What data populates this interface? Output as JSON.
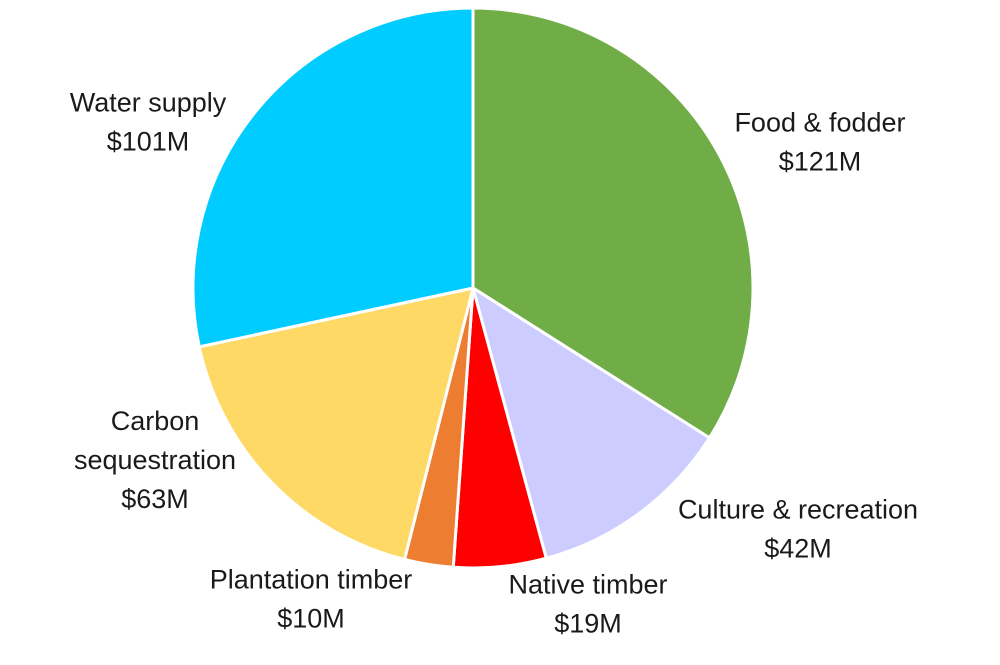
{
  "chart_data": {
    "type": "pie",
    "start_angle_deg": 0,
    "direction": "clockwise",
    "slices": [
      {
        "name": "Food & fodder",
        "label_lines": [
          "Food & fodder",
          "$121M"
        ],
        "value": 121,
        "color": "#70AD47"
      },
      {
        "name": "Culture & recreation",
        "label_lines": [
          "Culture & recreation",
          "$42M"
        ],
        "value": 42,
        "color": "#CCCCFF"
      },
      {
        "name": "Native timber",
        "label_lines": [
          "Native timber",
          "$19M"
        ],
        "value": 19,
        "color": "#FF0000"
      },
      {
        "name": "Plantation timber",
        "label_lines": [
          "Plantation timber",
          "$10M"
        ],
        "value": 10,
        "color": "#ED7D31"
      },
      {
        "name": "Carbon sequestration",
        "label_lines": [
          "Carbon",
          "sequestration",
          "$63M"
        ],
        "value": 63,
        "color": "#FFD966"
      },
      {
        "name": "Water supply",
        "label_lines": [
          "Water supply",
          "$101M"
        ],
        "value": 101,
        "color": "#00CCFF"
      }
    ],
    "value_unit": "$M",
    "legend": "none",
    "labels_position": "outside"
  }
}
